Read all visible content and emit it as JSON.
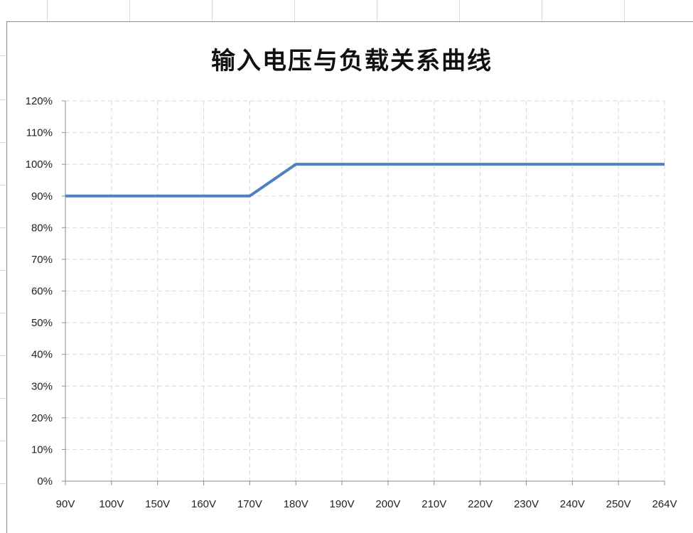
{
  "chart_data": {
    "type": "line",
    "title": "输入电压与负载关系曲线",
    "xlabel": "",
    "ylabel": "",
    "categories": [
      "90V",
      "100V",
      "150V",
      "160V",
      "170V",
      "180V",
      "190V",
      "200V",
      "210V",
      "220V",
      "230V",
      "240V",
      "250V",
      "264V"
    ],
    "series": [
      {
        "values": [
          90,
          90,
          90,
          90,
          90,
          100,
          100,
          100,
          100,
          100,
          100,
          100,
          100,
          100
        ]
      }
    ],
    "y_ticks": [
      "0%",
      "10%",
      "20%",
      "30%",
      "40%",
      "50%",
      "60%",
      "70%",
      "80%",
      "90%",
      "100%",
      "110%",
      "120%"
    ],
    "ylim": [
      0,
      120
    ],
    "grid": true,
    "legend": "none",
    "colors": {
      "line": "#4f81bd",
      "grid": "#d9d9d9",
      "axis": "#8c8c8c"
    }
  }
}
